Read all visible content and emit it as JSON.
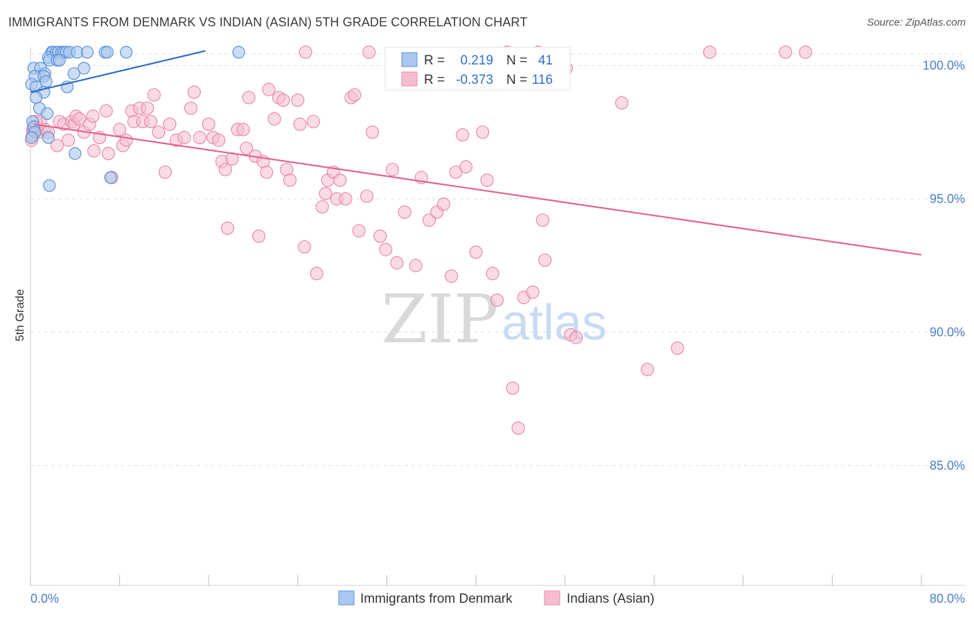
{
  "title": "IMMIGRANTS FROM DENMARK VS INDIAN (ASIAN) 5TH GRADE CORRELATION CHART",
  "source": "Source: ZipAtlas.com",
  "watermark": {
    "zip": "ZIP",
    "atlas": "atlas"
  },
  "colors": {
    "blue_fill": "#a9c8ef",
    "blue_stroke": "#5b8fd6",
    "blue_line": "#2a6dc9",
    "pink_fill": "#f6bdd0",
    "pink_stroke": "#e98aab",
    "pink_line": "#e2628f",
    "tick_text": "#4a7fc8"
  },
  "chart_data": {
    "type": "scatter",
    "title": "IMMIGRANTS FROM DENMARK VS INDIAN (ASIAN) 5TH GRADE CORRELATION CHART",
    "xlabel": "",
    "ylabel": "5th Grade",
    "xlim": [
      0,
      80
    ],
    "ylim": [
      80.5,
      100.9
    ],
    "x_tick_labels": [
      "0.0%",
      "80.0%"
    ],
    "y_ticks": [
      85,
      90,
      95,
      100
    ],
    "y_tick_labels": [
      "85.0%",
      "90.0%",
      "95.0%",
      "100.0%"
    ],
    "grid": true,
    "legend": {
      "position": "top-center",
      "rows": [
        {
          "r_label": "R =",
          "r_value": "0.219",
          "n_label": "N =",
          "n_value": "41"
        },
        {
          "r_label": "R =",
          "r_value": "-0.373",
          "n_label": "N =",
          "n_value": "116"
        }
      ]
    },
    "series": [
      {
        "name": "Immigrants from Denmark",
        "color": "blue",
        "trend": {
          "x": [
            0.0,
            15.7
          ],
          "y": [
            99.0,
            100.55
          ]
        },
        "points": [
          [
            1.9,
            100.5
          ],
          [
            2.0,
            100.5
          ],
          [
            2.3,
            100.5
          ],
          [
            2.5,
            100.5
          ],
          [
            2.8,
            100.5
          ],
          [
            3.0,
            100.5
          ],
          [
            3.2,
            100.5
          ],
          [
            3.5,
            100.5
          ],
          [
            4.2,
            100.5
          ],
          [
            5.1,
            100.5
          ],
          [
            6.7,
            100.5
          ],
          [
            6.9,
            100.5
          ],
          [
            8.6,
            100.5
          ],
          [
            18.7,
            100.5
          ],
          [
            1.6,
            100.3
          ],
          [
            1.7,
            100.2
          ],
          [
            2.4,
            100.2
          ],
          [
            2.6,
            100.2
          ],
          [
            0.3,
            99.9
          ],
          [
            0.9,
            99.9
          ],
          [
            4.8,
            99.9
          ],
          [
            1.3,
            99.7
          ],
          [
            3.9,
            99.7
          ],
          [
            0.4,
            99.6
          ],
          [
            1.2,
            99.6
          ],
          [
            1.4,
            99.4
          ],
          [
            0.1,
            99.3
          ],
          [
            0.5,
            99.2
          ],
          [
            1.2,
            99.0
          ],
          [
            3.3,
            99.2
          ],
          [
            0.5,
            98.8
          ],
          [
            0.8,
            98.4
          ],
          [
            1.5,
            98.2
          ],
          [
            0.2,
            97.9
          ],
          [
            0.3,
            97.7
          ],
          [
            0.4,
            97.5
          ],
          [
            0.1,
            97.3
          ],
          [
            1.6,
            97.3
          ],
          [
            4.0,
            96.7
          ],
          [
            7.2,
            95.8
          ],
          [
            1.7,
            95.5
          ]
        ]
      },
      {
        "name": "Indians (Asian)",
        "color": "pink",
        "trend": {
          "x": [
            0.3,
            80.0
          ],
          "y": [
            97.8,
            92.9
          ]
        },
        "points": [
          [
            0.2,
            97.6
          ],
          [
            0.5,
            97.7
          ],
          [
            0.7,
            97.5
          ],
          [
            0.9,
            97.9
          ],
          [
            1.3,
            97.6
          ],
          [
            1.6,
            97.5
          ],
          [
            2.4,
            97.0
          ],
          [
            2.6,
            97.9
          ],
          [
            3.0,
            97.8
          ],
          [
            3.4,
            97.2
          ],
          [
            3.7,
            97.9
          ],
          [
            3.9,
            97.8
          ],
          [
            4.1,
            98.1
          ],
          [
            4.4,
            98.0
          ],
          [
            4.8,
            97.5
          ],
          [
            5.3,
            97.8
          ],
          [
            5.6,
            98.1
          ],
          [
            5.7,
            96.8
          ],
          [
            6.2,
            97.3
          ],
          [
            6.8,
            98.3
          ],
          [
            7.0,
            96.7
          ],
          [
            7.3,
            95.8
          ],
          [
            8.0,
            97.6
          ],
          [
            8.3,
            97.0
          ],
          [
            8.6,
            97.2
          ],
          [
            9.1,
            98.3
          ],
          [
            9.3,
            97.9
          ],
          [
            9.8,
            98.4
          ],
          [
            10.1,
            97.9
          ],
          [
            10.5,
            98.4
          ],
          [
            10.8,
            97.9
          ],
          [
            11.1,
            98.9
          ],
          [
            11.5,
            97.5
          ],
          [
            12.1,
            96.0
          ],
          [
            12.5,
            97.8
          ],
          [
            13.1,
            97.2
          ],
          [
            13.8,
            97.3
          ],
          [
            14.4,
            98.4
          ],
          [
            14.7,
            99.0
          ],
          [
            15.2,
            97.3
          ],
          [
            16.0,
            97.8
          ],
          [
            16.4,
            97.3
          ],
          [
            16.9,
            97.2
          ],
          [
            17.2,
            96.4
          ],
          [
            17.5,
            96.1
          ],
          [
            17.7,
            93.9
          ],
          [
            18.1,
            96.5
          ],
          [
            18.6,
            97.6
          ],
          [
            19.1,
            97.6
          ],
          [
            19.4,
            96.9
          ],
          [
            19.6,
            98.8
          ],
          [
            20.2,
            96.6
          ],
          [
            20.5,
            93.6
          ],
          [
            20.9,
            96.4
          ],
          [
            21.2,
            96.0
          ],
          [
            21.4,
            99.1
          ],
          [
            21.9,
            98.0
          ],
          [
            22.3,
            98.8
          ],
          [
            22.7,
            98.7
          ],
          [
            23.0,
            96.1
          ],
          [
            23.3,
            95.7
          ],
          [
            24.0,
            98.7
          ],
          [
            24.2,
            97.8
          ],
          [
            24.6,
            93.2
          ],
          [
            25.4,
            97.9
          ],
          [
            25.7,
            92.2
          ],
          [
            26.2,
            94.7
          ],
          [
            26.5,
            95.2
          ],
          [
            26.7,
            95.7
          ],
          [
            27.2,
            96.0
          ],
          [
            27.5,
            95.0
          ],
          [
            27.8,
            95.7
          ],
          [
            28.3,
            95.0
          ],
          [
            28.8,
            98.8
          ],
          [
            29.1,
            98.9
          ],
          [
            29.5,
            93.8
          ],
          [
            30.2,
            95.1
          ],
          [
            30.7,
            97.5
          ],
          [
            31.4,
            93.6
          ],
          [
            31.9,
            93.1
          ],
          [
            32.5,
            96.1
          ],
          [
            32.9,
            92.6
          ],
          [
            33.6,
            94.5
          ],
          [
            34.6,
            92.5
          ],
          [
            35.1,
            95.8
          ],
          [
            35.8,
            94.2
          ],
          [
            36.5,
            94.5
          ],
          [
            37.1,
            94.8
          ],
          [
            37.8,
            92.1
          ],
          [
            38.2,
            96.0
          ],
          [
            38.8,
            97.4
          ],
          [
            39.1,
            96.2
          ],
          [
            40.0,
            93.0
          ],
          [
            40.6,
            97.5
          ],
          [
            41.0,
            95.7
          ],
          [
            41.5,
            92.2
          ],
          [
            41.9,
            91.2
          ],
          [
            42.8,
            100.5
          ],
          [
            43.3,
            87.9
          ],
          [
            43.8,
            86.4
          ],
          [
            44.3,
            91.3
          ],
          [
            45.1,
            91.5
          ],
          [
            46.0,
            94.2
          ],
          [
            46.2,
            92.7
          ],
          [
            48.1,
            99.9
          ],
          [
            48.5,
            89.9
          ],
          [
            49.0,
            89.8
          ],
          [
            53.1,
            98.6
          ],
          [
            55.4,
            88.6
          ],
          [
            58.1,
            89.4
          ],
          [
            61.0,
            100.5
          ],
          [
            67.8,
            100.5
          ],
          [
            69.6,
            100.5
          ],
          [
            45.6,
            100.5
          ],
          [
            24.7,
            100.5
          ],
          [
            30.4,
            100.5
          ],
          [
            0.1,
            97.2
          ],
          [
            0.2,
            97.4
          ],
          [
            0.3,
            97.6
          ],
          [
            0.5,
            97.9
          ]
        ]
      }
    ]
  }
}
